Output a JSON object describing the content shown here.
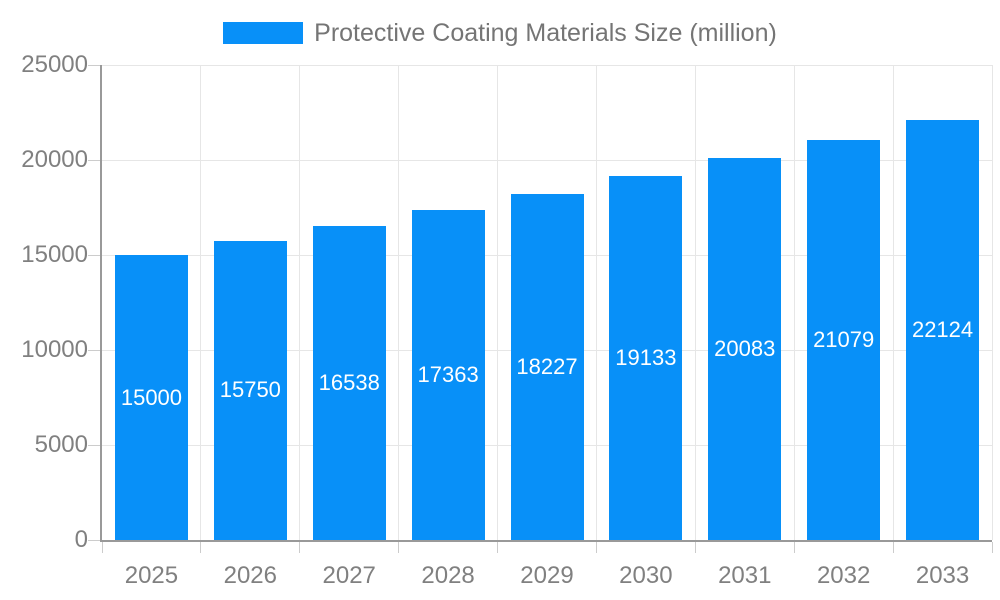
{
  "legend": {
    "label": "Protective Coating Materials Size (million)"
  },
  "colors": {
    "bar": "#0890f8",
    "grid": "#e6e6e6",
    "axis": "#999999",
    "tick": "#cccccc",
    "axis_label": "#808080",
    "legend_text": "#757575",
    "value_label": "#ffffff"
  },
  "chart_data": {
    "type": "bar",
    "title": "Protective Coating Materials Size (million)",
    "categories": [
      "2025",
      "2026",
      "2027",
      "2028",
      "2029",
      "2030",
      "2031",
      "2032",
      "2033"
    ],
    "values": [
      15000,
      15750,
      16538,
      17363,
      18227,
      19133,
      20083,
      21079,
      22124
    ],
    "xlabel": "",
    "ylabel": "",
    "ylim": [
      0,
      25000
    ],
    "yticks": [
      0,
      5000,
      10000,
      15000,
      20000,
      25000
    ],
    "grid": true,
    "legend_position": "top",
    "value_labels_position": "inside-center"
  }
}
